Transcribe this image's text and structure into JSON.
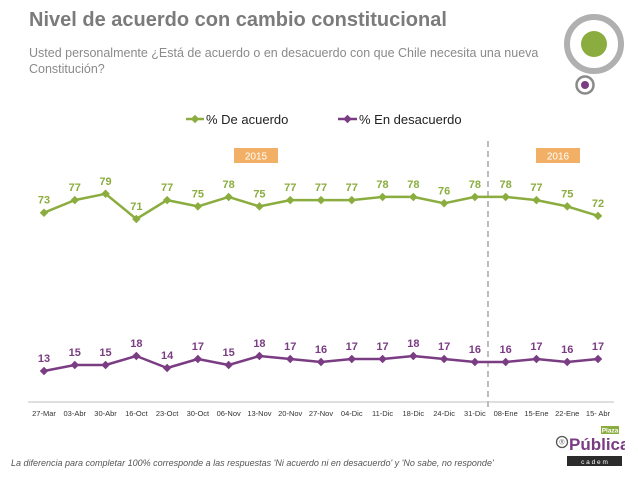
{
  "header": {
    "title": "Nivel de acuerdo con cambio constitucional",
    "subtitle": "Usted personalmente ¿Está de acuerdo o en desacuerdo con que Chile necesita una nueva Constitución?"
  },
  "footnote": "La diferencia para completar 100% corresponde a las respuestas 'Ni acuerdo ni en desacuerdo' y 'No sabe, no responde'",
  "logo": {
    "word": "Pública",
    "badge": "Plaza",
    "prefix": "®",
    "sub": "c a d e m"
  },
  "colors": {
    "acuerdo": "#8bad3f",
    "desacuerdo": "#7a3c82",
    "year_badge": "#f2b066",
    "divider": "#999999",
    "title": "#7b7b7b"
  },
  "chart_data": {
    "type": "line",
    "title": "",
    "xlabel": "",
    "ylabel": "",
    "ylim": [
      0,
      100
    ],
    "legend_position": "top-center",
    "categories": [
      "27-Mar",
      "03-Abr",
      "30-Abr",
      "16-Oct",
      "23-Oct",
      "30-Oct",
      "06-Nov",
      "13-Nov",
      "20-Nov",
      "27-Nov",
      "04-Dic",
      "11-Dic",
      "18-Dic",
      "24-Dic",
      "31-Dic",
      "08-Ene",
      "15-Ene",
      "22-Ene",
      "15- Abr"
    ],
    "series": [
      {
        "name": "% De acuerdo",
        "values": [
          73,
          77,
          79,
          71,
          77,
          75,
          78,
          75,
          77,
          77,
          77,
          78,
          78,
          76,
          78,
          78,
          77,
          75,
          72
        ]
      },
      {
        "name": "% En desacuerdo",
        "values": [
          13,
          15,
          15,
          18,
          14,
          17,
          15,
          18,
          17,
          16,
          17,
          17,
          18,
          17,
          16,
          16,
          17,
          16,
          17
        ]
      }
    ],
    "year_labels": [
      "2015",
      "2016"
    ],
    "divider_after_category": "31-Dic"
  }
}
